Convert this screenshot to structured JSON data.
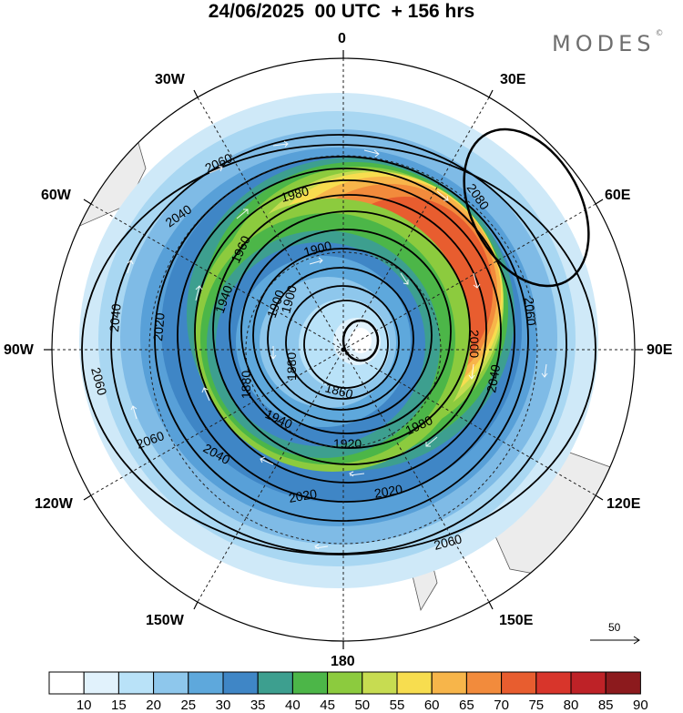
{
  "title": "24/06/2025  00 UTC  + 156 hrs",
  "brand": {
    "name": "MODES",
    "mark": "©"
  },
  "longitude_labels": {
    "lon_0": "0",
    "lon_30e": "30E",
    "lon_60e": "60E",
    "lon_90e": "90E",
    "lon_120e": "120E",
    "lon_150e": "150E",
    "lon_180": "180",
    "lon_150w": "150W",
    "lon_120w": "120W",
    "lon_90w": "90W",
    "lon_60w": "60W",
    "lon_30w": "30W"
  },
  "vector_reference": {
    "label": "50"
  },
  "colorbar": {
    "ticks": [
      "10",
      "15",
      "20",
      "25",
      "30",
      "35",
      "40",
      "45",
      "50",
      "55",
      "60",
      "65",
      "70",
      "75",
      "80",
      "85",
      "90"
    ],
    "colors": [
      "#ffffff",
      "#e1f2fc",
      "#b9e2f8",
      "#8ec7ec",
      "#5ea8dc",
      "#3f86c6",
      "#3d9f8f",
      "#4cb648",
      "#8ccb3e",
      "#c7dc51",
      "#f7dd4f",
      "#f7b54a",
      "#f28b3c",
      "#e85d2f",
      "#d8352b",
      "#be2227",
      "#8c1a1d"
    ]
  },
  "contour_labels": [
    "2060",
    "2040",
    "1980",
    "1960",
    "1900",
    "1900",
    "2040",
    "2020",
    "1940",
    "1900",
    "1880",
    "1880",
    "1860",
    "1920",
    "1940",
    "1980",
    "2020",
    "2040",
    "2060",
    "2060",
    "2060",
    "2080",
    "2060",
    "2000",
    "2040",
    "2020"
  ]
}
